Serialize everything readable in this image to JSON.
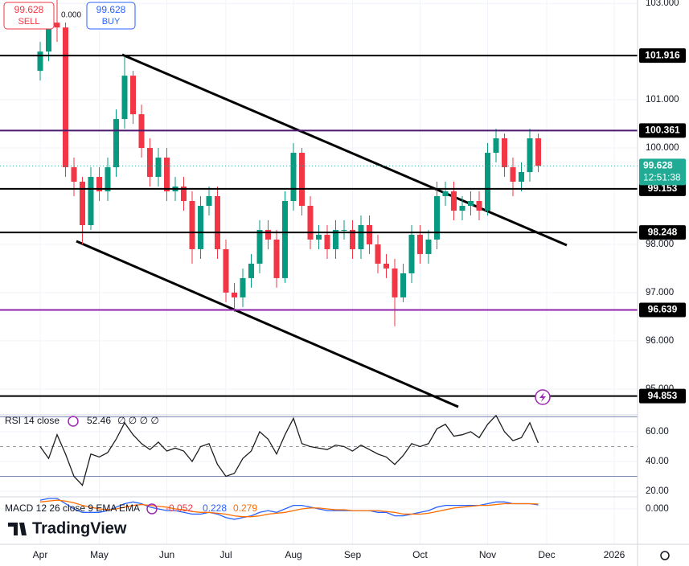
{
  "trade_panel": {
    "sell_price": "99.628",
    "sell_label": "SELL",
    "spread": "0.000",
    "buy_price": "99.628",
    "buy_label": "BUY"
  },
  "watermark": "TradingView",
  "chart_data": [
    {
      "type": "candlestick",
      "categories": [
        "Apr",
        null,
        null,
        null,
        null,
        null,
        null,
        "May",
        null,
        null,
        null,
        null,
        null,
        null,
        null,
        "Jun",
        null,
        null,
        null,
        null,
        null,
        null,
        "Jul",
        null,
        null,
        null,
        null,
        null,
        null,
        null,
        "Aug",
        null,
        null,
        null,
        null,
        null,
        null,
        "Sep",
        null,
        null,
        null,
        null,
        null,
        null,
        null,
        "Oct",
        null,
        null,
        null,
        null,
        null,
        null,
        null,
        "Nov",
        null,
        null,
        null,
        null,
        null,
        null,
        "Dec",
        null,
        null,
        null,
        null,
        null,
        null,
        null,
        "2026",
        null,
        null
      ],
      "open": [
        101.6,
        102.0,
        102.6,
        102.5,
        99.6,
        99.3,
        98.4,
        99.4,
        99.1,
        99.6,
        100.6,
        101.5,
        100.7,
        100.0,
        99.4,
        99.8,
        99.1,
        99.2,
        98.9,
        97.9,
        98.8,
        99.0,
        97.9,
        97.0,
        96.9,
        97.3,
        97.6,
        98.3,
        98.1,
        97.3,
        98.9,
        99.9,
        98.8,
        98.1,
        98.2,
        97.9,
        98.3,
        98.3,
        97.9,
        98.4,
        98.0,
        97.6,
        97.5,
        96.9,
        97.4,
        98.2,
        97.8,
        98.1,
        99.0,
        99.1,
        98.7,
        98.8,
        98.9,
        98.7,
        99.9,
        100.2,
        99.6,
        99.3,
        99.5,
        100.2,
        null,
        null,
        null,
        null,
        null,
        null,
        null,
        null,
        null,
        null,
        null
      ],
      "high": [
        102.2,
        102.8,
        103.1,
        102.6,
        99.8,
        99.4,
        99.6,
        99.6,
        99.8,
        100.8,
        101.9,
        101.6,
        100.9,
        100.2,
        100.0,
        100.0,
        99.4,
        99.4,
        99.1,
        99.0,
        99.2,
        99.2,
        98.1,
        97.2,
        97.5,
        97.8,
        98.5,
        98.5,
        98.3,
        99.1,
        100.1,
        100.0,
        99.0,
        98.4,
        98.4,
        98.5,
        98.5,
        98.5,
        98.6,
        98.6,
        98.2,
        97.8,
        97.7,
        97.6,
        98.4,
        98.4,
        98.3,
        99.3,
        99.3,
        99.3,
        99.0,
        99.1,
        99.1,
        100.1,
        100.4,
        100.3,
        99.8,
        99.7,
        100.4,
        100.3,
        null,
        null,
        null,
        null,
        null,
        null,
        null,
        null,
        null,
        null,
        null
      ],
      "low": [
        101.4,
        101.8,
        102.2,
        99.4,
        99.0,
        98.0,
        98.3,
        98.9,
        98.9,
        99.4,
        100.4,
        100.5,
        99.8,
        99.2,
        99.2,
        98.9,
        98.9,
        98.7,
        97.6,
        97.7,
        98.6,
        97.7,
        96.8,
        96.6,
        96.7,
        97.1,
        97.4,
        97.9,
        97.1,
        97.2,
        98.7,
        98.6,
        97.9,
        97.9,
        97.7,
        97.7,
        98.1,
        97.7,
        97.7,
        97.8,
        97.4,
        97.3,
        96.3,
        96.8,
        97.2,
        97.6,
        97.6,
        97.9,
        98.8,
        98.5,
        98.5,
        98.6,
        98.5,
        98.6,
        99.7,
        99.4,
        99.0,
        99.1,
        99.3,
        99.5,
        null,
        null,
        null,
        null,
        null,
        null,
        null,
        null,
        null,
        null,
        null
      ],
      "close": [
        102.0,
        102.6,
        102.5,
        99.6,
        99.3,
        98.4,
        99.4,
        99.1,
        99.6,
        100.6,
        101.5,
        100.7,
        100.0,
        99.4,
        99.8,
        99.1,
        99.2,
        98.9,
        97.9,
        98.8,
        99.0,
        97.9,
        97.0,
        96.9,
        97.3,
        97.6,
        98.3,
        98.1,
        97.3,
        98.9,
        99.9,
        98.8,
        98.1,
        98.2,
        97.9,
        98.3,
        98.3,
        97.9,
        98.4,
        98.0,
        97.6,
        97.5,
        96.9,
        97.4,
        98.2,
        97.8,
        98.1,
        99.0,
        99.1,
        98.7,
        98.8,
        98.9,
        98.7,
        99.9,
        100.2,
        99.6,
        99.3,
        99.5,
        100.2,
        99.628,
        null,
        null,
        null,
        null,
        null,
        null,
        null,
        null,
        null,
        null,
        null
      ],
      "up_color": "#089981",
      "down_color": "#f23645",
      "ylim": [
        94.48,
        103.07
      ],
      "yticks": [
        {
          "value": 95,
          "label": "95.000"
        },
        {
          "value": 96,
          "label": "96.000"
        },
        {
          "value": 97,
          "label": "97.000"
        },
        {
          "value": 98,
          "label": "98.000"
        },
        {
          "value": 100,
          "label": "100.000"
        },
        {
          "value": 101,
          "label": "101.000"
        },
        {
          "value": 103,
          "label": "103.000"
        }
      ],
      "grid": true,
      "levels": [
        101.916,
        100.361,
        99.153,
        98.248,
        96.639,
        94.853
      ],
      "level_colors": [
        "#000000",
        "#4a1a6e",
        "#000000",
        "#000000",
        "#8e24aa",
        "#000000"
      ],
      "last_price": 99.628,
      "countdown": "12:51:38",
      "last_price_color": "#22ab94"
    },
    {
      "type": "line",
      "title": "RSI 14 close",
      "na_values": "∅ ∅ ∅ ∅",
      "color": "#1e1e1e",
      "values": [
        50,
        42,
        58,
        45,
        30,
        24,
        45,
        43,
        46,
        55,
        66,
        58,
        52,
        48,
        53,
        47,
        49,
        47,
        40,
        50,
        52,
        38,
        30,
        32,
        42,
        47,
        60,
        55,
        45,
        58,
        69,
        52,
        50,
        49,
        48,
        51,
        50,
        47,
        51,
        48,
        45,
        43,
        38,
        44,
        52,
        50,
        52,
        62,
        65,
        57,
        58,
        60,
        56,
        65,
        71,
        60,
        54,
        56,
        66,
        52.46,
        null,
        null,
        null,
        null,
        null,
        null,
        null,
        null,
        null,
        null,
        null
      ],
      "ylim": [
        16.2,
        71.35
      ],
      "yticks": [
        {
          "value": 20,
          "label": "20.00"
        },
        {
          "value": 40,
          "label": "40.00"
        },
        {
          "value": 60,
          "label": "60.00"
        }
      ],
      "bands": [
        30,
        70
      ],
      "midline": 50
    },
    {
      "type": "line",
      "title": "MACD 12 26 close 9 EMA EMA",
      "histogram_last": -0.052,
      "histogram_color": "#f23645",
      "series": [
        {
          "color": "#2962ff",
          "values": [
            0.5,
            0.6,
            0.6,
            0.3,
            0.0,
            -0.2,
            -0.2,
            -0.2,
            -0.1,
            0.1,
            0.3,
            0.4,
            0.3,
            0.1,
            0.0,
            -0.1,
            -0.1,
            -0.2,
            -0.3,
            -0.3,
            -0.2,
            -0.3,
            -0.5,
            -0.6,
            -0.5,
            -0.4,
            -0.2,
            -0.1,
            -0.2,
            0.0,
            0.2,
            0.2,
            0.1,
            0.0,
            -0.1,
            -0.1,
            -0.1,
            -0.1,
            -0.1,
            -0.1,
            -0.2,
            -0.2,
            -0.4,
            -0.4,
            -0.3,
            -0.2,
            -0.1,
            0.1,
            0.2,
            0.2,
            0.2,
            0.2,
            0.2,
            0.3,
            0.4,
            0.4,
            0.3,
            0.3,
            0.3,
            0.228,
            null,
            null,
            null,
            null,
            null,
            null,
            null,
            null,
            null,
            null,
            null
          ]
        },
        {
          "color": "#ff6d00",
          "values": [
            0.4,
            0.45,
            0.5,
            0.45,
            0.35,
            0.2,
            0.1,
            0.0,
            -0.05,
            0.0,
            0.1,
            0.2,
            0.25,
            0.2,
            0.15,
            0.1,
            0.0,
            -0.05,
            -0.15,
            -0.2,
            -0.2,
            -0.25,
            -0.3,
            -0.4,
            -0.45,
            -0.45,
            -0.4,
            -0.3,
            -0.25,
            -0.2,
            -0.1,
            0.0,
            0.05,
            0.05,
            0.0,
            -0.05,
            -0.05,
            -0.1,
            -0.1,
            -0.1,
            -0.1,
            -0.15,
            -0.2,
            -0.3,
            -0.3,
            -0.3,
            -0.25,
            -0.15,
            -0.05,
            0.05,
            0.1,
            0.15,
            0.2,
            0.2,
            0.25,
            0.3,
            0.3,
            0.3,
            0.3,
            0.279,
            null,
            null,
            null,
            null,
            null,
            null,
            null,
            null,
            null,
            null,
            null
          ]
        }
      ],
      "ylim": [
        -0.88,
        0.6
      ],
      "yticks": [
        {
          "value": 0,
          "label": "0.000"
        }
      ]
    }
  ]
}
